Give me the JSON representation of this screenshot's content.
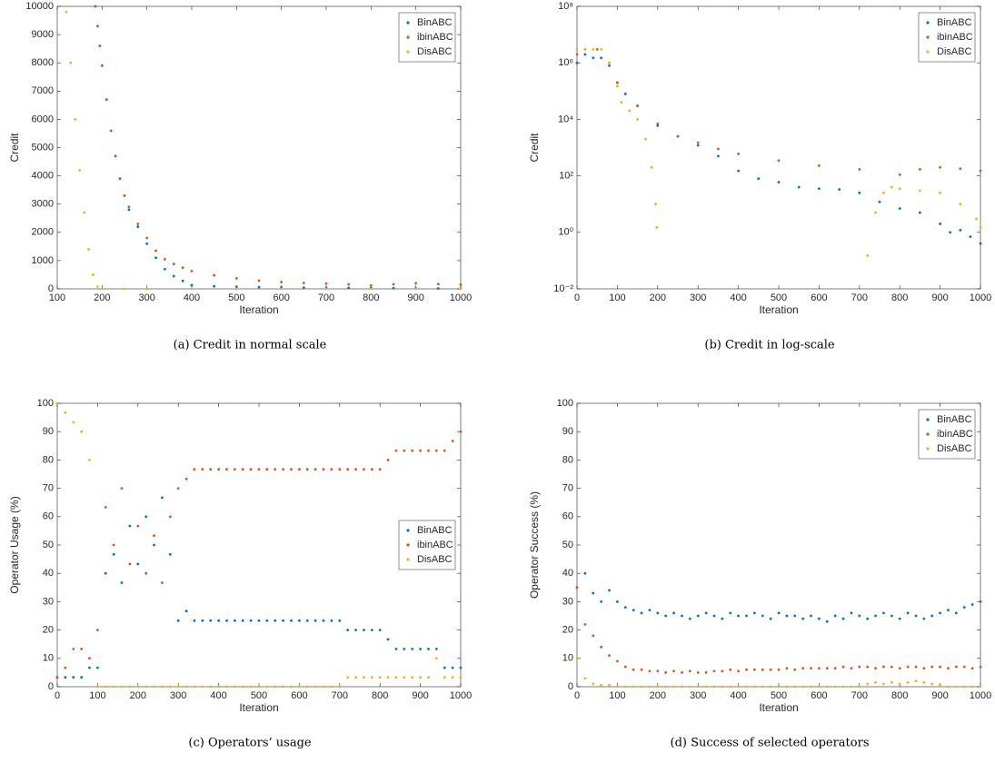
{
  "chart_data": [
    {
      "type": "scatter",
      "caption": "(a) Credit in normal scale",
      "xlabel": "Iteration",
      "ylabel": "Credit",
      "xlim": [
        100,
        1000
      ],
      "xticks": [
        100,
        200,
        300,
        400,
        500,
        600,
        700,
        800,
        900,
        1000
      ],
      "ylim": [
        0,
        10000
      ],
      "yticks": [
        0,
        1000,
        2000,
        3000,
        4000,
        5000,
        6000,
        7000,
        8000,
        9000,
        10000
      ],
      "log": false,
      "legend": "upper right",
      "series": [
        {
          "name": "BinABC",
          "color": "#0072BD",
          "x": [
            185,
            190,
            195,
            200,
            210,
            220,
            230,
            240,
            250,
            260,
            280,
            300,
            320,
            340,
            360,
            380,
            400,
            450,
            500,
            550,
            600,
            650,
            700,
            750,
            800,
            850,
            900,
            950,
            1000
          ],
          "values": [
            10000,
            9300,
            8600,
            7900,
            6700,
            5600,
            4700,
            3900,
            3300,
            2800,
            2200,
            1600,
            1100,
            700,
            450,
            280,
            130,
            90,
            70,
            60,
            50,
            45,
            40,
            35,
            30,
            25,
            20,
            15,
            10
          ]
        },
        {
          "name": "ibinABC",
          "color": "#D95319",
          "x": [
            185,
            190,
            195,
            200,
            210,
            220,
            230,
            240,
            250,
            260,
            280,
            300,
            320,
            340,
            360,
            380,
            400,
            450,
            500,
            550,
            600,
            650,
            700,
            750,
            800,
            850,
            900,
            950,
            1000
          ],
          "values": [
            10000,
            9300,
            8600,
            7900,
            6700,
            5600,
            4700,
            3900,
            3300,
            2900,
            2300,
            1800,
            1350,
            1050,
            880,
            750,
            630,
            480,
            370,
            290,
            240,
            210,
            190,
            160,
            120,
            160,
            200,
            170,
            150
          ]
        },
        {
          "name": "DisABC",
          "color": "#EDB120",
          "x": [
            120,
            130,
            140,
            150,
            160,
            170,
            180,
            190,
            200,
            250,
            300,
            400,
            500,
            600,
            700,
            800,
            900,
            1000
          ],
          "values": [
            9800,
            8000,
            6000,
            4200,
            2700,
            1400,
            500,
            80,
            0,
            0,
            0,
            0,
            0,
            0,
            0,
            0,
            0,
            0
          ]
        }
      ]
    },
    {
      "type": "scatter",
      "caption": "(b) Credit in log-scale",
      "xlabel": "Iteration",
      "ylabel": "Credit",
      "xlim": [
        0,
        1000
      ],
      "xticks": [
        0,
        100,
        200,
        300,
        400,
        500,
        600,
        700,
        800,
        900,
        1000
      ],
      "ylim": [
        0.01,
        100000000
      ],
      "yticks": [
        {
          "value": 0.01,
          "label": "10⁻²"
        },
        {
          "value": 1,
          "label": "10⁰"
        },
        {
          "value": 100,
          "label": "10²"
        },
        {
          "value": 10000,
          "label": "10⁴"
        },
        {
          "value": 1000000,
          "label": "10⁶"
        },
        {
          "value": 100000000,
          "label": "10⁸"
        }
      ],
      "log": true,
      "legend": "upper right",
      "series": [
        {
          "name": "BinABC",
          "color": "#0072BD",
          "x": [
            0,
            20,
            40,
            60,
            80,
            100,
            120,
            150,
            200,
            250,
            300,
            350,
            400,
            450,
            500,
            550,
            600,
            650,
            700,
            750,
            800,
            850,
            900,
            925,
            950,
            975,
            1000
          ],
          "values": [
            1000000,
            2000000,
            1500000,
            1500000,
            800000,
            200000,
            80000,
            30000,
            6000,
            2500,
            1200,
            500,
            150,
            80,
            60,
            40,
            35,
            33,
            25,
            12,
            7,
            5,
            2,
            1,
            1.2,
            0.7,
            0.4
          ]
        },
        {
          "name": "ibinABC",
          "color": "#D95319",
          "x": [
            0,
            20,
            50,
            80,
            100,
            150,
            200,
            250,
            300,
            350,
            400,
            500,
            600,
            700,
            800,
            850,
            900,
            950,
            1000
          ],
          "values": [
            2000000,
            3000000,
            3000000,
            1000000,
            200000,
            30000,
            7000,
            2500,
            1500,
            900,
            600,
            350,
            230,
            170,
            110,
            170,
            200,
            180,
            150
          ]
        },
        {
          "name": "DisABC",
          "color": "#EDB120",
          "x": [
            0,
            20,
            40,
            60,
            80,
            100,
            110,
            130,
            150,
            170,
            185,
            195,
            198,
            720,
            740,
            760,
            780,
            800,
            850,
            900,
            950,
            990,
            1000
          ],
          "values": [
            3000000,
            3000000,
            3000000,
            3000000,
            1000000,
            150000,
            40000,
            20000,
            10000,
            2000,
            200,
            10,
            1.5,
            0.15,
            5,
            25,
            40,
            35,
            30,
            25,
            10,
            3,
            1.5
          ]
        }
      ]
    },
    {
      "type": "scatter",
      "caption": "(c) Operators’ usage",
      "xlabel": "Iteration",
      "ylabel": "Operator Usage (%)",
      "xlim": [
        0,
        1000
      ],
      "xticks": [
        0,
        100,
        200,
        300,
        400,
        500,
        600,
        700,
        800,
        900,
        1000
      ],
      "ylim": [
        0,
        100
      ],
      "yticks": [
        0,
        10,
        20,
        30,
        40,
        50,
        60,
        70,
        80,
        90,
        100
      ],
      "log": false,
      "legend": "center right",
      "x": [
        0,
        20,
        40,
        60,
        80,
        100,
        120,
        140,
        160,
        180,
        200,
        220,
        240,
        260,
        280,
        300,
        320,
        340,
        360,
        380,
        400,
        420,
        440,
        460,
        480,
        500,
        520,
        540,
        560,
        580,
        600,
        620,
        640,
        660,
        680,
        700,
        720,
        740,
        760,
        780,
        800,
        820,
        840,
        860,
        880,
        900,
        920,
        940,
        960,
        980,
        1000
      ],
      "series": [
        {
          "name": "BinABC",
          "color": "#0072BD",
          "values": [
            3.3,
            3.3,
            3.3,
            3.3,
            6.7,
            6.7,
            40,
            46.7,
            36.7,
            56.7,
            43.3,
            60,
            50,
            66.7,
            46.7,
            23.3,
            26.7,
            23.3,
            23.3,
            23.3,
            23.3,
            23.3,
            23.3,
            23.3,
            23.3,
            23.3,
            23.3,
            23.3,
            23.3,
            23.3,
            23.3,
            23.3,
            23.3,
            23.3,
            23.3,
            23.3,
            20,
            20,
            20,
            20,
            20,
            16.7,
            13.3,
            13.3,
            13.3,
            13.3,
            13.3,
            13.3,
            6.7,
            6.7,
            6.7
          ]
        },
        {
          "name": "ibinABC",
          "color": "#D95319",
          "values": [
            3.3,
            6.7,
            13.3,
            13.3,
            10,
            20,
            63.3,
            50,
            70,
            43.3,
            56.7,
            40,
            53.3,
            36.7,
            60,
            70,
            73.3,
            76.7,
            76.7,
            76.7,
            76.7,
            76.7,
            76.7,
            76.7,
            76.7,
            76.7,
            76.7,
            76.7,
            76.7,
            76.7,
            76.7,
            76.7,
            76.7,
            76.7,
            76.7,
            76.7,
            76.7,
            76.7,
            76.7,
            76.7,
            76.7,
            80,
            83.3,
            83.3,
            83.3,
            83.3,
            83.3,
            83.3,
            83.3,
            86.7,
            90
          ]
        },
        {
          "name": "DisABC",
          "color": "#EDB120",
          "values": [
            100,
            96.7,
            93.3,
            90,
            80,
            0,
            0,
            0,
            0,
            0,
            0,
            0,
            0,
            0,
            0,
            0,
            0,
            0,
            0,
            0,
            0,
            0,
            0,
            0,
            0,
            0,
            0,
            0,
            0,
            0,
            0,
            0,
            0,
            0,
            0,
            0,
            3.3,
            3.3,
            3.3,
            3.3,
            3.3,
            3.3,
            3.3,
            3.3,
            3.3,
            3.3,
            3.3,
            10,
            3.3,
            3.3,
            3.3
          ]
        }
      ]
    },
    {
      "type": "scatter",
      "caption": "(d) Success of selected operators",
      "xlabel": "Iteration",
      "ylabel": "Operator Success (%)",
      "xlim": [
        0,
        1000
      ],
      "xticks": [
        0,
        100,
        200,
        300,
        400,
        500,
        600,
        700,
        800,
        900,
        1000
      ],
      "ylim": [
        0,
        100
      ],
      "yticks": [
        0,
        10,
        20,
        30,
        40,
        50,
        60,
        70,
        80,
        90,
        100
      ],
      "log": false,
      "legend": "upper right",
      "x": [
        0,
        20,
        40,
        60,
        80,
        100,
        120,
        140,
        160,
        180,
        200,
        220,
        240,
        260,
        280,
        300,
        320,
        340,
        360,
        380,
        400,
        420,
        440,
        460,
        480,
        500,
        520,
        540,
        560,
        580,
        600,
        620,
        640,
        660,
        680,
        700,
        720,
        740,
        760,
        780,
        800,
        820,
        840,
        860,
        880,
        900,
        920,
        940,
        960,
        980,
        1000
      ],
      "series": [
        {
          "name": "BinABC",
          "color": "#0072BD",
          "values": [
            35,
            40,
            33,
            30,
            34,
            30,
            28,
            27,
            26,
            27,
            26,
            25,
            26,
            25,
            24,
            25,
            26,
            25,
            24,
            26,
            25,
            25,
            26,
            25,
            24,
            26,
            25,
            25,
            24,
            25,
            24,
            23,
            25,
            24,
            26,
            25,
            24,
            25,
            26,
            25,
            24,
            26,
            25,
            24,
            25,
            26,
            27,
            26,
            28,
            29,
            30
          ]
        },
        {
          "name": "ibinABC",
          "color": "#D95319",
          "values": [
            35,
            22,
            18,
            14,
            11,
            9,
            7,
            6,
            6,
            5.5,
            5.5,
            5,
            5.5,
            5,
            5.5,
            5,
            5,
            5.5,
            5.5,
            6,
            5.5,
            6,
            6,
            6,
            6,
            6,
            6.5,
            6,
            6.5,
            6.5,
            6.5,
            6.5,
            6.5,
            7,
            6.5,
            7,
            7,
            6.5,
            7,
            7,
            6.5,
            7,
            7,
            6.5,
            7,
            7,
            6.5,
            7,
            7,
            6.5,
            7
          ]
        },
        {
          "name": "DisABC",
          "color": "#EDB120",
          "values": [
            10,
            3,
            1,
            0.5,
            0.5,
            0,
            0,
            0,
            0,
            0,
            0,
            0,
            0,
            0,
            0,
            0,
            0,
            0,
            0,
            0,
            0,
            0,
            0,
            0,
            0,
            0,
            0,
            0,
            0,
            0,
            0,
            0,
            0,
            0,
            0,
            0,
            1,
            1.5,
            1,
            1.5,
            1,
            1.5,
            2,
            1.5,
            1,
            0.5,
            0,
            0,
            0,
            0,
            0
          ]
        }
      ]
    }
  ]
}
